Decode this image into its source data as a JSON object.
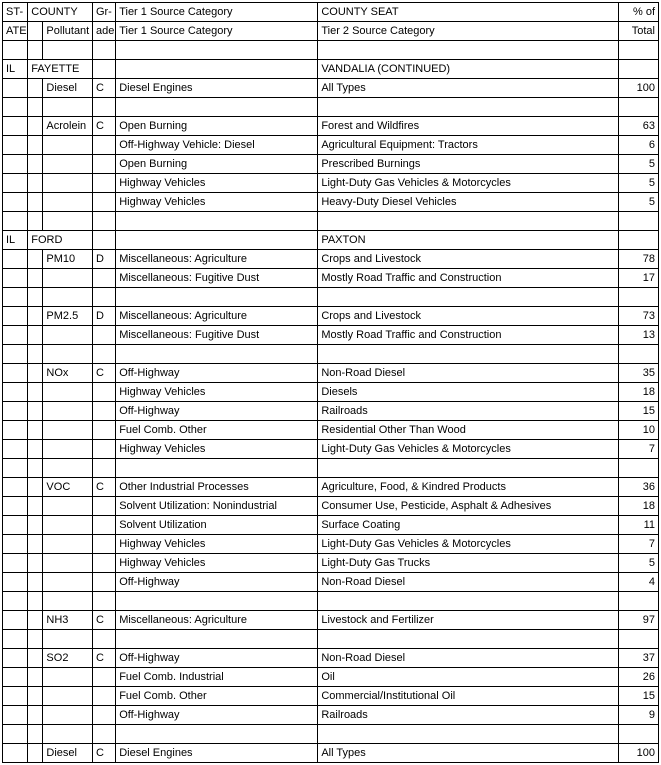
{
  "header": {
    "state": "ST-",
    "state2": "ATE",
    "county": "COUNTY",
    "pollutant": "Pollutant",
    "grade": "Gr-",
    "grade2": "ade",
    "tier1": "Tier 1 Source Category",
    "county_seat": "COUNTY SEAT",
    "tier2": "Tier 2 Source Category",
    "pct": "% of",
    "total": "Total"
  },
  "rows": [
    {
      "state": "",
      "cty": "",
      "poll": "",
      "gr": "",
      "t1": "",
      "t2": "",
      "pct": ""
    },
    {
      "state": "IL",
      "cty": "FAYETTE",
      "poll": "",
      "gr": "",
      "t1": "",
      "t2": "VANDALIA (CONTINUED)",
      "pct": "",
      "merge": true
    },
    {
      "state": "",
      "cty": "",
      "poll": "Diesel",
      "gr": "C",
      "t1": "Diesel Engines",
      "t2": "All Types",
      "pct": "100"
    },
    {
      "state": "",
      "cty": "",
      "poll": "",
      "gr": "",
      "t1": "",
      "t2": "",
      "pct": ""
    },
    {
      "state": "",
      "cty": "",
      "poll": "Acrolein",
      "gr": "C",
      "t1": "Open Burning",
      "t2": "Forest and Wildfires",
      "pct": "63"
    },
    {
      "state": "",
      "cty": "",
      "poll": "",
      "gr": "",
      "t1": "Off-Highway Vehicle: Diesel",
      "t2": "Agricultural Equipment: Tractors",
      "pct": "6"
    },
    {
      "state": "",
      "cty": "",
      "poll": "",
      "gr": "",
      "t1": "Open Burning",
      "t2": "Prescribed Burnings",
      "pct": "5"
    },
    {
      "state": "",
      "cty": "",
      "poll": "",
      "gr": "",
      "t1": "Highway Vehicles",
      "t2": "Light-Duty Gas Vehicles & Motorcycles",
      "pct": "5"
    },
    {
      "state": "",
      "cty": "",
      "poll": "",
      "gr": "",
      "t1": "Highway Vehicles",
      "t2": "Heavy-Duty Diesel Vehicles",
      "pct": "5"
    },
    {
      "state": "",
      "cty": "",
      "poll": "",
      "gr": "",
      "t1": "",
      "t2": "",
      "pct": ""
    },
    {
      "state": "IL",
      "cty": "FORD",
      "poll": "",
      "gr": "",
      "t1": "",
      "t2": "PAXTON",
      "pct": "",
      "merge": true
    },
    {
      "state": "",
      "cty": "",
      "poll": "PM10",
      "gr": "D",
      "t1": "Miscellaneous: Agriculture",
      "t2": "Crops and Livestock",
      "pct": "78"
    },
    {
      "state": "",
      "cty": "",
      "poll": "",
      "gr": "",
      "t1": "Miscellaneous: Fugitive Dust",
      "t2": "Mostly Road Traffic and Construction",
      "pct": "17"
    },
    {
      "state": "",
      "cty": "",
      "poll": "",
      "gr": "",
      "t1": "",
      "t2": "",
      "pct": ""
    },
    {
      "state": "",
      "cty": "",
      "poll": "PM2.5",
      "gr": "D",
      "t1": "Miscellaneous: Agriculture",
      "t2": "Crops and Livestock",
      "pct": "73"
    },
    {
      "state": "",
      "cty": "",
      "poll": "",
      "gr": "",
      "t1": "Miscellaneous: Fugitive Dust",
      "t2": "Mostly Road Traffic and Construction",
      "pct": "13"
    },
    {
      "state": "",
      "cty": "",
      "poll": "",
      "gr": "",
      "t1": "",
      "t2": "",
      "pct": ""
    },
    {
      "state": "",
      "cty": "",
      "poll": "NOx",
      "gr": "C",
      "t1": "Off-Highway",
      "t2": "Non-Road Diesel",
      "pct": "35"
    },
    {
      "state": "",
      "cty": "",
      "poll": "",
      "gr": "",
      "t1": "Highway Vehicles",
      "t2": "Diesels",
      "pct": "18"
    },
    {
      "state": "",
      "cty": "",
      "poll": "",
      "gr": "",
      "t1": "Off-Highway",
      "t2": "Railroads",
      "pct": "15"
    },
    {
      "state": "",
      "cty": "",
      "poll": "",
      "gr": "",
      "t1": "Fuel Comb. Other",
      "t2": "Residential Other Than Wood",
      "pct": "10"
    },
    {
      "state": "",
      "cty": "",
      "poll": "",
      "gr": "",
      "t1": "Highway Vehicles",
      "t2": "Light-Duty Gas Vehicles & Motorcycles",
      "pct": "7"
    },
    {
      "state": "",
      "cty": "",
      "poll": "",
      "gr": "",
      "t1": "",
      "t2": "",
      "pct": ""
    },
    {
      "state": "",
      "cty": "",
      "poll": "VOC",
      "gr": "C",
      "t1": "Other Industrial Processes",
      "t2": "Agriculture, Food, & Kindred Products",
      "pct": "36"
    },
    {
      "state": "",
      "cty": "",
      "poll": "",
      "gr": "",
      "t1": "Solvent Utilization: Nonindustrial",
      "t2": "Consumer Use, Pesticide, Asphalt & Adhesives",
      "pct": "18"
    },
    {
      "state": "",
      "cty": "",
      "poll": "",
      "gr": "",
      "t1": "Solvent Utilization",
      "t2": "Surface Coating",
      "pct": "11"
    },
    {
      "state": "",
      "cty": "",
      "poll": "",
      "gr": "",
      "t1": "Highway Vehicles",
      "t2": "Light-Duty Gas Vehicles & Motorcycles",
      "pct": "7"
    },
    {
      "state": "",
      "cty": "",
      "poll": "",
      "gr": "",
      "t1": "Highway Vehicles",
      "t2": "Light-Duty Gas Trucks",
      "pct": "5"
    },
    {
      "state": "",
      "cty": "",
      "poll": "",
      "gr": "",
      "t1": "Off-Highway",
      "t2": "Non-Road Diesel",
      "pct": "4"
    },
    {
      "state": "",
      "cty": "",
      "poll": "",
      "gr": "",
      "t1": "",
      "t2": "",
      "pct": ""
    },
    {
      "state": "",
      "cty": "",
      "poll": "NH3",
      "gr": "C",
      "t1": "Miscellaneous: Agriculture",
      "t2": "Livestock and Fertilizer",
      "pct": "97"
    },
    {
      "state": "",
      "cty": "",
      "poll": "",
      "gr": "",
      "t1": "",
      "t2": "",
      "pct": ""
    },
    {
      "state": "",
      "cty": "",
      "poll": "SO2",
      "gr": "C",
      "t1": "Off-Highway",
      "t2": "Non-Road Diesel",
      "pct": "37"
    },
    {
      "state": "",
      "cty": "",
      "poll": "",
      "gr": "",
      "t1": "Fuel Comb. Industrial",
      "t2": "Oil",
      "pct": "26"
    },
    {
      "state": "",
      "cty": "",
      "poll": "",
      "gr": "",
      "t1": "Fuel Comb. Other",
      "t2": "Commercial/Institutional Oil",
      "pct": "15"
    },
    {
      "state": "",
      "cty": "",
      "poll": "",
      "gr": "",
      "t1": "Off-Highway",
      "t2": "Railroads",
      "pct": "9"
    },
    {
      "state": "",
      "cty": "",
      "poll": "",
      "gr": "",
      "t1": "",
      "t2": "",
      "pct": ""
    },
    {
      "state": "",
      "cty": "",
      "poll": "Diesel",
      "gr": "C",
      "t1": "Diesel Engines",
      "t2": "All Types",
      "pct": "100"
    }
  ]
}
